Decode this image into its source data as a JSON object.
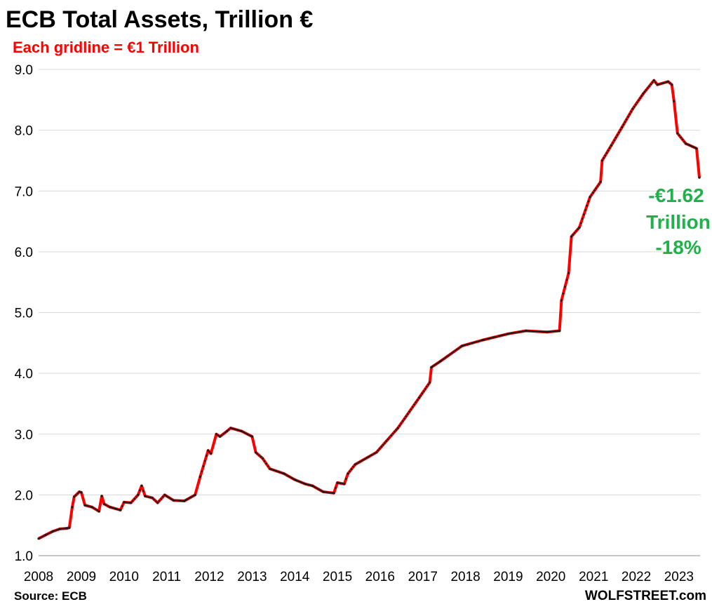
{
  "chart_data": {
    "type": "line",
    "title": "ECB Total Assets, Trillion €",
    "subtitle": "Each gridline = €1 Trillion",
    "source": "Source: ECB",
    "watermark": "WOLFSTREET.com",
    "annotation": [
      "-€1.62",
      "Trillion",
      "-18%"
    ],
    "xlabel": "",
    "ylabel": "",
    "ylim": [
      1,
      9
    ],
    "xlim": [
      "2008-01-01",
      "2023-07-01"
    ],
    "y_ticks": [
      "1.0",
      "2.0",
      "3.0",
      "4.0",
      "5.0",
      "6.0",
      "7.0",
      "8.0",
      "9.0"
    ],
    "x_ticks": [
      "2008",
      "2009",
      "2010",
      "2011",
      "2012",
      "2013",
      "2014",
      "2015",
      "2016",
      "2017",
      "2018",
      "2019",
      "2020",
      "2021",
      "2022",
      "2023"
    ],
    "grid": true,
    "colors": {
      "line": "#ff0000",
      "markers": "#1a1a1a",
      "title": "#000000",
      "subtitle": "#ff0000",
      "annotation": "#21b04b",
      "grid": "#d9d9d9"
    },
    "series": [
      {
        "points": [
          [
            "2008-01-01",
            1.28
          ],
          [
            "2008-03-01",
            1.34
          ],
          [
            "2008-05-01",
            1.4
          ],
          [
            "2008-07-01",
            1.44
          ],
          [
            "2008-09-01",
            1.45
          ],
          [
            "2008-09-20",
            1.46
          ],
          [
            "2008-10-15",
            1.8
          ],
          [
            "2008-11-01",
            1.97
          ],
          [
            "2008-12-15",
            2.05
          ],
          [
            "2009-01-01",
            2.04
          ],
          [
            "2009-02-01",
            1.83
          ],
          [
            "2009-04-01",
            1.8
          ],
          [
            "2009-06-01",
            1.73
          ],
          [
            "2009-06-25",
            1.98
          ],
          [
            "2009-07-15",
            1.85
          ],
          [
            "2009-09-01",
            1.8
          ],
          [
            "2009-12-01",
            1.75
          ],
          [
            "2010-01-01",
            1.88
          ],
          [
            "2010-03-01",
            1.87
          ],
          [
            "2010-05-01",
            2.0
          ],
          [
            "2010-06-01",
            2.15
          ],
          [
            "2010-07-01",
            1.98
          ],
          [
            "2010-09-01",
            1.95
          ],
          [
            "2010-10-15",
            1.87
          ],
          [
            "2010-12-15",
            2.0
          ],
          [
            "2011-03-01",
            1.91
          ],
          [
            "2011-06-01",
            1.9
          ],
          [
            "2011-09-01",
            2.0
          ],
          [
            "2011-10-15",
            2.3
          ],
          [
            "2011-12-22",
            2.73
          ],
          [
            "2012-01-15",
            2.68
          ],
          [
            "2012-03-01",
            3.0
          ],
          [
            "2012-04-01",
            2.96
          ],
          [
            "2012-06-01",
            3.05
          ],
          [
            "2012-07-01",
            3.1
          ],
          [
            "2012-10-01",
            3.05
          ],
          [
            "2013-01-01",
            2.96
          ],
          [
            "2013-02-01",
            2.7
          ],
          [
            "2013-04-01",
            2.6
          ],
          [
            "2013-06-01",
            2.43
          ],
          [
            "2013-10-01",
            2.35
          ],
          [
            "2014-01-01",
            2.25
          ],
          [
            "2014-04-01",
            2.18
          ],
          [
            "2014-06-01",
            2.15
          ],
          [
            "2014-09-01",
            2.05
          ],
          [
            "2014-12-01",
            2.03
          ],
          [
            "2015-01-01",
            2.2
          ],
          [
            "2015-03-01",
            2.18
          ],
          [
            "2015-04-01",
            2.35
          ],
          [
            "2015-06-01",
            2.5
          ],
          [
            "2015-12-01",
            2.7
          ],
          [
            "2016-06-01",
            3.1
          ],
          [
            "2016-12-01",
            3.6
          ],
          [
            "2017-03-01",
            3.85
          ],
          [
            "2017-03-15",
            4.1
          ],
          [
            "2017-06-01",
            4.2
          ],
          [
            "2017-12-01",
            4.45
          ],
          [
            "2018-06-01",
            4.55
          ],
          [
            "2018-12-31",
            4.65
          ],
          [
            "2019-06-01",
            4.7
          ],
          [
            "2019-12-01",
            4.68
          ],
          [
            "2020-03-15",
            4.7
          ],
          [
            "2020-04-01",
            5.2
          ],
          [
            "2020-06-01",
            5.65
          ],
          [
            "2020-06-25",
            6.25
          ],
          [
            "2020-09-01",
            6.4
          ],
          [
            "2020-12-01",
            6.9
          ],
          [
            "2021-03-01",
            7.15
          ],
          [
            "2021-03-15",
            7.5
          ],
          [
            "2021-06-01",
            7.75
          ],
          [
            "2021-09-01",
            8.05
          ],
          [
            "2021-12-01",
            8.35
          ],
          [
            "2022-03-01",
            8.6
          ],
          [
            "2022-06-01",
            8.82
          ],
          [
            "2022-07-01",
            8.75
          ],
          [
            "2022-10-01",
            8.8
          ],
          [
            "2022-11-01",
            8.75
          ],
          [
            "2022-11-20",
            8.48
          ],
          [
            "2022-12-20",
            7.95
          ],
          [
            "2023-03-01",
            7.78
          ],
          [
            "2023-06-01",
            7.7
          ],
          [
            "2023-06-25",
            7.22
          ]
        ]
      }
    ]
  }
}
